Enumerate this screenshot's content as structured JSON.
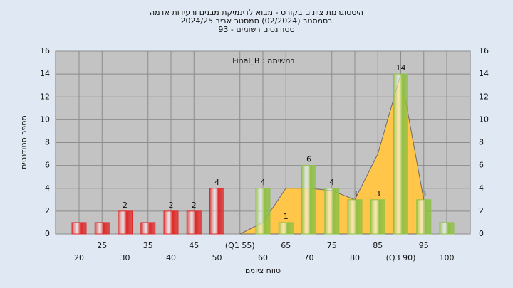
{
  "chart_data": {
    "type": "bar",
    "title": [
      "היסטוגרמת ציונים בקורס - מבוא לדינמיקת מבנים ורעידות אדמה",
      "בסמסטר  (02/2024)  סמסטר אביב 2024/25",
      "סטודנטים רשומים - 93"
    ],
    "annotation": "Final_B : במשימה",
    "x_label": "טווח ציונים",
    "y_label": "מספר סטודנטים",
    "categories": [
      "20",
      "25",
      "30",
      "35",
      "40",
      "45",
      "50",
      "(Q1 55)",
      "60",
      "65",
      "70",
      "75",
      "80",
      "85",
      "(Q3 90)",
      "95",
      "100"
    ],
    "values": [
      1,
      1,
      2,
      1,
      2,
      2,
      4,
      0,
      4,
      1,
      6,
      4,
      3,
      3,
      14,
      3,
      1
    ],
    "value_labels": [
      null,
      null,
      "2",
      null,
      "2",
      "2",
      "4",
      null,
      "4",
      "1",
      "6",
      "4",
      "3",
      "3",
      "14",
      "3",
      null
    ],
    "colors": [
      "#e02828",
      "#e02828",
      "#e02828",
      "#e02828",
      "#e02828",
      "#e02828",
      "#e02828",
      "#8fc043",
      "#8fc043",
      "#8fc043",
      "#8fc043",
      "#8fc043",
      "#8fc043",
      "#8fc043",
      "#8fc043",
      "#8fc043",
      "#8fc043"
    ],
    "area": {
      "color": "#ffc64a",
      "values": [
        null,
        null,
        null,
        null,
        null,
        null,
        null,
        0,
        1,
        4,
        4,
        3.8,
        3,
        7,
        14,
        3,
        null
      ]
    },
    "ylim": [
      0,
      16
    ],
    "yticks": [
      0,
      2,
      4,
      6,
      8,
      10,
      12,
      14,
      16
    ],
    "grid": true
  }
}
